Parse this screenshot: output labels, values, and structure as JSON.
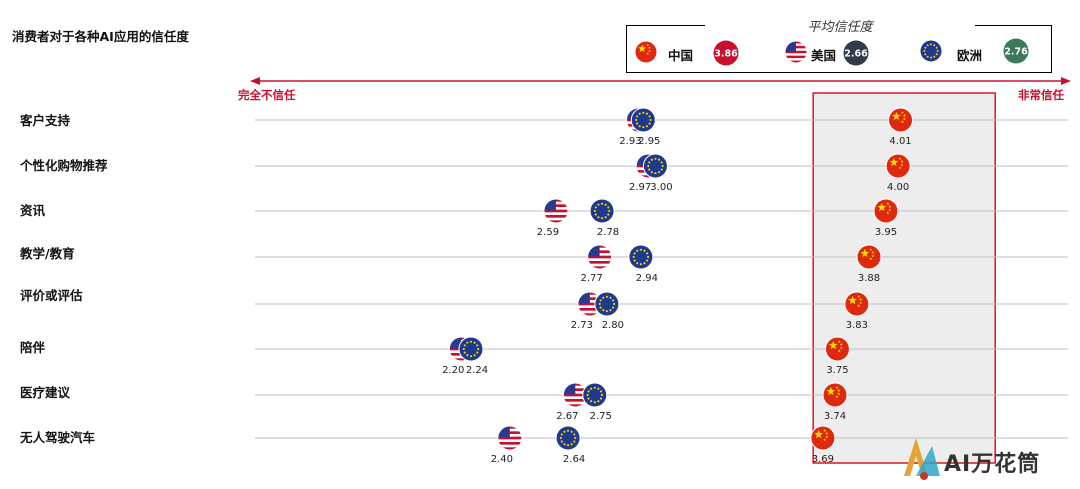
{
  "title": "消费者对于各种AI应用的信任度",
  "legend": {
    "title": "平均信任度",
    "items": [
      {
        "name": "中国",
        "flag": "china-flag",
        "average": "3.86",
        "badge_color": "#c8102e"
      },
      {
        "name": "美国",
        "flag": "us-flag",
        "average": "2.66",
        "badge_color": "#2f3d4a"
      },
      {
        "name": "欧洲",
        "flag": "eu-flag",
        "average": "2.76",
        "badge_color": "#3a7a5a"
      }
    ]
  },
  "axis": {
    "left_label": "完全不信任",
    "right_label": "非常信任"
  },
  "watermark": "AI万花筒",
  "chart_data": {
    "type": "scatter",
    "title": "消费者对于各种AI应用的信任度",
    "xlim": [
      1.35,
      4.7
    ],
    "categories": [
      "客户支持",
      "个性化购物推荐",
      "资讯",
      "教学/教育",
      "评价或评估",
      "陪伴",
      "医疗建议",
      "无人驾驶汽车"
    ],
    "series": [
      {
        "name": "美国",
        "values": [
          2.93,
          2.97,
          2.59,
          2.77,
          2.73,
          2.2,
          2.67,
          2.4
        ]
      },
      {
        "name": "欧洲",
        "values": [
          2.95,
          3.0,
          2.78,
          2.94,
          2.8,
          2.24,
          2.75,
          2.64
        ]
      },
      {
        "name": "中国",
        "values": [
          4.01,
          4.0,
          3.95,
          3.88,
          3.83,
          3.75,
          3.74,
          3.69
        ]
      }
    ],
    "value_labels": {
      "美国": [
        "2.93",
        "2.97",
        "2.59",
        "2.77",
        "2.73",
        "2.20",
        "2.67",
        "2.40"
      ],
      "欧洲": [
        "2.95",
        "3.00",
        "2.78",
        "2.94",
        "2.80",
        "2.24",
        "2.75",
        "2.64"
      ],
      "中国": [
        "4.01",
        "4.00",
        "3.95",
        "3.88",
        "3.83",
        "3.75",
        "3.74",
        "3.69"
      ]
    },
    "highlight_range": [
      3.65,
      4.4
    ]
  }
}
